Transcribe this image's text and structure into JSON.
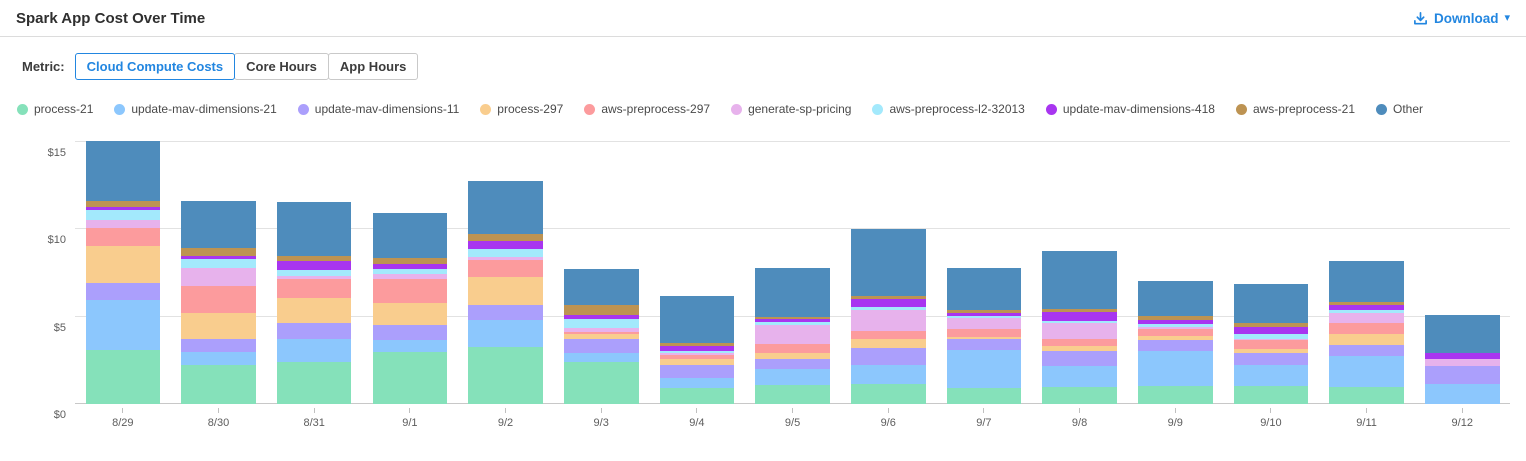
{
  "header": {
    "title": "Spark App Cost Over Time",
    "download_label": "Download"
  },
  "metric": {
    "label": "Metric:",
    "options": [
      {
        "label": "Cloud Compute Costs",
        "selected": true
      },
      {
        "label": "Core Hours",
        "selected": false
      },
      {
        "label": "App Hours",
        "selected": false
      }
    ]
  },
  "colors": {
    "accent_blue": "#2286e0",
    "axis_text": "#5d5d5d",
    "gridline": "#e2e2e2"
  },
  "chart_data": {
    "type": "bar",
    "stacked": true,
    "title": "Spark App Cost Over Time",
    "xlabel": "",
    "ylabel": "",
    "ytick_prefix": "$",
    "yticks": [
      0,
      5,
      10,
      15
    ],
    "ylim": [
      0,
      15
    ],
    "grid": true,
    "legend_position": "top",
    "categories": [
      "8/29",
      "8/30",
      "8/31",
      "9/1",
      "9/2",
      "9/3",
      "9/4",
      "9/5",
      "9/6",
      "9/7",
      "9/8",
      "9/9",
      "9/10",
      "9/11",
      "9/12"
    ],
    "series": [
      {
        "name": "process-21",
        "color": "#85E1BA",
        "values": [
          3.1,
          2.25,
          2.4,
          3.0,
          3.25,
          2.4,
          0.9,
          1.1,
          1.15,
          0.9,
          1.0,
          1.05,
          1.05,
          1.0,
          0
        ]
      },
      {
        "name": "update-mav-dimensions-21",
        "color": "#8CC7FD",
        "values": [
          2.85,
          0.7,
          1.3,
          0.65,
          1.55,
          0.5,
          0.6,
          0.9,
          1.1,
          2.2,
          1.2,
          2.0,
          1.2,
          1.75,
          1.15
        ]
      },
      {
        "name": "update-mav-dimensions-11",
        "color": "#AB9FFC",
        "values": [
          1.0,
          0.75,
          0.95,
          0.85,
          0.85,
          0.8,
          0.75,
          0.55,
          0.95,
          0.6,
          0.85,
          0.6,
          0.65,
          0.65,
          1.0
        ]
      },
      {
        "name": "process-297",
        "color": "#F9CD8E",
        "values": [
          2.1,
          1.5,
          1.45,
          1.3,
          1.6,
          0.3,
          0.3,
          0.35,
          0.55,
          0.15,
          0.25,
          0.25,
          0.25,
          0.6,
          0
        ]
      },
      {
        "name": "aws-preprocess-297",
        "color": "#FC9B9D",
        "values": [
          1.05,
          1.55,
          1.05,
          1.35,
          1.0,
          0.15,
          0.25,
          0.55,
          0.45,
          0.45,
          0.45,
          0.4,
          0.5,
          0.65,
          0
        ]
      },
      {
        "name": "generate-sp-pricing",
        "color": "#E7B2EC",
        "values": [
          0.45,
          1.05,
          0.2,
          0.3,
          0.15,
          0.2,
          0.1,
          1.1,
          1.2,
          0.6,
          0.9,
          0.1,
          0.1,
          0.55,
          0.4
        ]
      },
      {
        "name": "aws-preprocess-l2-32013",
        "color": "#A3E9FC",
        "values": [
          0.55,
          0.5,
          0.35,
          0.3,
          0.45,
          0.5,
          0.15,
          0.15,
          0.15,
          0.15,
          0.1,
          0.2,
          0.25,
          0.2,
          0
        ]
      },
      {
        "name": "update-mav-dimensions-418",
        "color": "#A835F0",
        "values": [
          0.2,
          0.2,
          0.5,
          0.25,
          0.5,
          0.25,
          0.3,
          0.15,
          0.45,
          0.15,
          0.5,
          0.2,
          0.4,
          0.25,
          0.35
        ]
      },
      {
        "name": "aws-preprocess-21",
        "color": "#BD9352",
        "values": [
          0.3,
          0.45,
          0.3,
          0.35,
          0.4,
          0.55,
          0.15,
          0.15,
          0.2,
          0.2,
          0.2,
          0.25,
          0.25,
          0.2,
          0
        ]
      },
      {
        "name": "Other",
        "color": "#4E8CBC",
        "values": [
          3.45,
          2.65,
          3.05,
          2.6,
          3.05,
          2.1,
          2.7,
          2.8,
          3.8,
          2.4,
          3.3,
          2.0,
          2.25,
          2.35,
          2.2
        ]
      }
    ]
  }
}
